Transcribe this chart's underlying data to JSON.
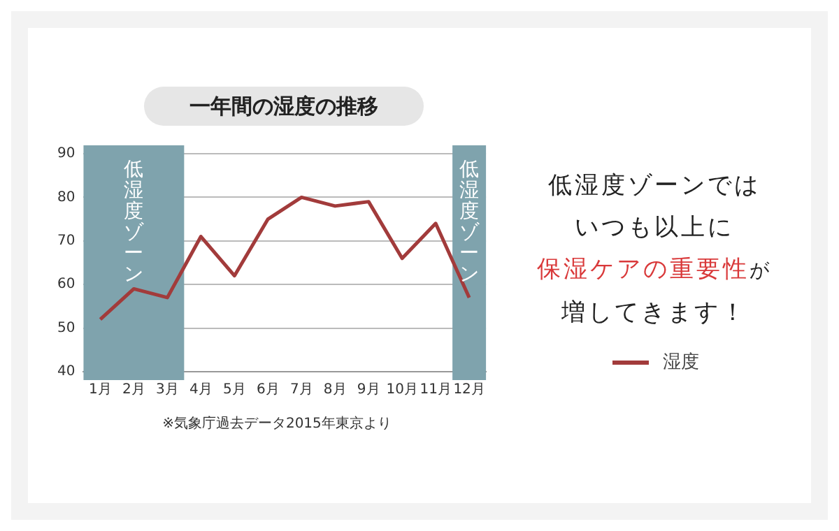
{
  "chart_data": {
    "type": "line",
    "title": "一年間の湿度の推移",
    "categories": [
      "1月",
      "2月",
      "3月",
      "4月",
      "5月",
      "6月",
      "7月",
      "8月",
      "9月",
      "10月",
      "11月",
      "12月"
    ],
    "series": [
      {
        "name": "湿度",
        "color": "#a23b3b",
        "values": [
          52,
          59,
          57,
          71,
          62,
          75,
          80,
          78,
          79,
          66,
          74,
          57
        ]
      }
    ],
    "ylim": [
      40,
      90
    ],
    "yticks": [
      40,
      50,
      60,
      70,
      80,
      90
    ],
    "grid": "y",
    "legend": "right",
    "marker": "none",
    "line_style": "solid",
    "bands": [
      {
        "axis": "x",
        "from": "1月",
        "to": "3月",
        "label": "低湿度ゾーン",
        "color": "#7fa3ad"
      },
      {
        "axis": "x",
        "from": "12月",
        "to": "12月",
        "label": "低湿度ゾーン",
        "color": "#7fa3ad"
      }
    ],
    "annotations": [
      "※気象庁過去データ2015年東京より",
      "低湿度ゾーンでは",
      "いつも以上に",
      "保湿ケアの重要性",
      "が",
      "増してきます！"
    ]
  }
}
